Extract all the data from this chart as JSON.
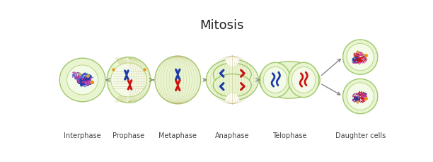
{
  "title": "Mitosis",
  "title_fontsize": 13,
  "title_fontweight": "normal",
  "labels": [
    "Interphase",
    "Prophase",
    "Metaphase",
    "Anaphase",
    "Telophase",
    "Daughter cells"
  ],
  "label_fontsize": 7,
  "bg_color": "#ffffff",
  "cell_fill": "#e8f5d0",
  "cell_edge": "#9ec86a",
  "nucleus_fill": "#f4fae8",
  "nucleus_edge": "#b8d880",
  "arrow_color": "#888888",
  "chr_blue": "#1a3aaa",
  "chr_red": "#cc1111",
  "chr_purple": "#882288",
  "spindle_color": "#c8b878",
  "dot_orange": "#e89010",
  "dot_tan": "#c8a850"
}
